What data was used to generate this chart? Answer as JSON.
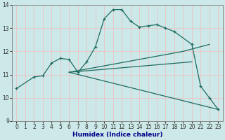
{
  "xlabel": "Humidex (Indice chaleur)",
  "bg_color": "#cce8e8",
  "grid_color": "#e8c8c8",
  "line_color": "#1e6b60",
  "xlim": [
    -0.5,
    23.5
  ],
  "ylim": [
    9,
    14
  ],
  "yticks": [
    9,
    10,
    11,
    12,
    13,
    14
  ],
  "xticks": [
    0,
    1,
    2,
    3,
    4,
    5,
    6,
    7,
    8,
    9,
    10,
    11,
    12,
    13,
    14,
    15,
    16,
    17,
    18,
    19,
    20,
    21,
    22,
    23
  ],
  "series1_x": [
    0,
    2,
    3,
    4,
    5,
    6,
    7,
    8,
    9,
    10,
    11,
    12,
    13,
    14,
    15,
    16,
    17,
    18,
    20,
    21,
    22,
    23
  ],
  "series1_y": [
    10.4,
    10.9,
    10.95,
    11.5,
    11.7,
    11.65,
    11.1,
    11.55,
    12.2,
    13.4,
    13.8,
    13.8,
    13.3,
    13.05,
    13.1,
    13.15,
    13.0,
    12.85,
    12.3,
    10.5,
    10.0,
    9.5
  ],
  "series2_x": [
    6,
    23
  ],
  "series2_y": [
    11.1,
    9.5
  ],
  "series3_x": [
    6,
    20
  ],
  "series3_y": [
    11.1,
    11.55
  ],
  "series4_x": [
    6,
    19,
    22
  ],
  "series4_y": [
    11.1,
    12.0,
    12.3
  ]
}
